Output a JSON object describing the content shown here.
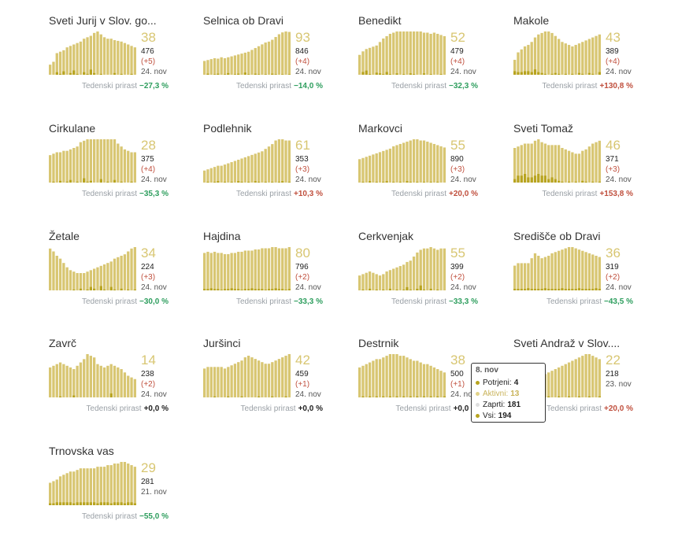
{
  "trend_label": "Tedenski prirast",
  "colors": {
    "bar": "#d8c672",
    "bar_dark": "#b8a420",
    "green": "#2e9e5e",
    "red": "#c0503e"
  },
  "tooltip": {
    "date": "8. nov",
    "rows": [
      {
        "label": "Potrjeni:",
        "value": "4",
        "color": "#b8a420"
      },
      {
        "label": "Aktivni:",
        "value": "13",
        "color": "#e2d389"
      },
      {
        "label": "Zaprti:",
        "value": "181",
        "color": "#dedede"
      },
      {
        "label": "Vsi:",
        "value": "194",
        "color": "#b8a420"
      }
    ]
  },
  "chart_data": [
    {
      "type": "bar",
      "name": "Sveti Jurij v Slov. go...",
      "active": "38",
      "total": "476",
      "delta": "(+5)",
      "date": "24. nov",
      "weekly": "−27,3 %",
      "trend": "down",
      "values": [
        14,
        18,
        30,
        32,
        34,
        38,
        40,
        42,
        44,
        46,
        50,
        52,
        54,
        58,
        60,
        56,
        52,
        50,
        50,
        48,
        47,
        46,
        44,
        42,
        40,
        38
      ],
      "confirmed": [
        0,
        0,
        3,
        1,
        4,
        0,
        2,
        5,
        1,
        0,
        3,
        1,
        6,
        2,
        0,
        1,
        0,
        0,
        0,
        2,
        0,
        1,
        0,
        0,
        1,
        0
      ]
    },
    {
      "type": "bar",
      "name": "Selnica ob Dravi",
      "active": "93",
      "total": "846",
      "delta": "(+4)",
      "date": "24. nov",
      "weekly": "−14,0 %",
      "trend": "down",
      "values": [
        30,
        32,
        34,
        36,
        35,
        38,
        36,
        38,
        40,
        42,
        44,
        46,
        48,
        50,
        54,
        58,
        62,
        66,
        70,
        72,
        76,
        82,
        88,
        92,
        94,
        93
      ],
      "confirmed": [
        0,
        2,
        0,
        1,
        2,
        0,
        1,
        3,
        0,
        1,
        2,
        0,
        4,
        1,
        0,
        2,
        1,
        0,
        1,
        0,
        2,
        1,
        0,
        1,
        0,
        1
      ]
    },
    {
      "type": "bar",
      "name": "Benedikt",
      "active": "52",
      "total": "479",
      "delta": "(+4)",
      "date": "24. nov",
      "weekly": "−32,3 %",
      "trend": "down",
      "values": [
        34,
        40,
        44,
        46,
        48,
        50,
        56,
        62,
        66,
        70,
        72,
        74,
        74,
        74,
        74,
        74,
        74,
        74,
        74,
        72,
        72,
        70,
        72,
        70,
        68,
        66
      ],
      "confirmed": [
        0,
        4,
        6,
        1,
        0,
        3,
        2,
        1,
        4,
        1,
        0,
        2,
        0,
        1,
        0,
        2,
        1,
        0,
        0,
        2,
        0,
        1,
        0,
        0,
        1,
        0
      ]
    },
    {
      "type": "bar",
      "name": "Makole",
      "active": "43",
      "total": "389",
      "delta": "(+4)",
      "date": "24. nov",
      "weekly": "+130,8 %",
      "trend": "up",
      "values": [
        20,
        30,
        34,
        38,
        40,
        44,
        50,
        54,
        56,
        58,
        58,
        56,
        52,
        48,
        44,
        42,
        40,
        38,
        40,
        42,
        44,
        46,
        48,
        50,
        52,
        54
      ],
      "confirmed": [
        4,
        3,
        3,
        4,
        4,
        3,
        6,
        3,
        2,
        1,
        0,
        1,
        2,
        1,
        0,
        1,
        0,
        1,
        0,
        2,
        1,
        0,
        2,
        1,
        0,
        3
      ]
    },
    {
      "type": "bar",
      "name": "Cirkulane",
      "active": "28",
      "total": "375",
      "delta": "(+4)",
      "date": "24. nov",
      "weekly": "−35,3 %",
      "trend": "down",
      "values": [
        38,
        40,
        42,
        42,
        44,
        44,
        46,
        48,
        50,
        56,
        58,
        60,
        60,
        60,
        60,
        60,
        60,
        60,
        60,
        60,
        54,
        50,
        46,
        44,
        42,
        42
      ],
      "confirmed": [
        0,
        1,
        0,
        2,
        0,
        1,
        3,
        0,
        1,
        0,
        5,
        1,
        2,
        0,
        0,
        4,
        0,
        1,
        0,
        3,
        0,
        1,
        0,
        0,
        1,
        0
      ]
    },
    {
      "type": "bar",
      "name": "Podlehnik",
      "active": "61",
      "total": "353",
      "delta": "(+3)",
      "date": "24. nov",
      "weekly": "+10,3 %",
      "trend": "up",
      "values": [
        20,
        22,
        24,
        26,
        28,
        28,
        30,
        32,
        34,
        36,
        38,
        40,
        42,
        44,
        46,
        48,
        50,
        52,
        56,
        60,
        64,
        70,
        72,
        72,
        70,
        70
      ],
      "confirmed": [
        0,
        1,
        0,
        1,
        2,
        0,
        1,
        0,
        1,
        0,
        2,
        1,
        0,
        1,
        0,
        2,
        1,
        0,
        1,
        0,
        1,
        0,
        1,
        2,
        0,
        1
      ]
    },
    {
      "type": "bar",
      "name": "Markovci",
      "active": "55",
      "total": "890",
      "delta": "(+3)",
      "date": "24. nov",
      "weekly": "+20,0 %",
      "trend": "up",
      "values": [
        40,
        42,
        44,
        46,
        48,
        50,
        52,
        54,
        56,
        58,
        62,
        64,
        66,
        68,
        70,
        72,
        74,
        74,
        72,
        72,
        70,
        68,
        66,
        64,
        62,
        60
      ],
      "confirmed": [
        0,
        1,
        0,
        2,
        0,
        1,
        0,
        1,
        2,
        0,
        1,
        0,
        1,
        0,
        2,
        1,
        0,
        1,
        0,
        1,
        0,
        1,
        0,
        1,
        0,
        0
      ]
    },
    {
      "type": "bar",
      "name": "Sveti Tomaž",
      "active": "46",
      "total": "371",
      "delta": "(+3)",
      "date": "24. nov",
      "weekly": "+153,8 %",
      "trend": "up",
      "values": [
        48,
        50,
        52,
        54,
        54,
        54,
        58,
        60,
        56,
        54,
        52,
        52,
        52,
        52,
        48,
        46,
        44,
        42,
        40,
        40,
        44,
        46,
        50,
        54,
        56,
        58
      ],
      "confirmed": [
        4,
        8,
        8,
        10,
        6,
        6,
        8,
        10,
        8,
        8,
        4,
        6,
        4,
        2,
        1,
        0,
        1,
        0,
        1,
        0,
        2,
        1,
        0,
        1,
        0,
        1
      ]
    },
    {
      "type": "bar",
      "name": "Žetale",
      "active": "34",
      "total": "224",
      "delta": "(+3)",
      "date": "24. nov",
      "weekly": "−30,0 %",
      "trend": "down",
      "values": [
        58,
        54,
        48,
        44,
        38,
        32,
        28,
        26,
        24,
        24,
        24,
        26,
        28,
        30,
        32,
        34,
        36,
        38,
        40,
        44,
        46,
        48,
        50,
        54,
        58,
        60
      ],
      "confirmed": [
        0,
        0,
        0,
        0,
        0,
        0,
        0,
        1,
        0,
        2,
        0,
        1,
        4,
        2,
        0,
        5,
        1,
        0,
        4,
        1,
        0,
        2,
        0,
        1,
        0,
        1
      ]
    },
    {
      "type": "bar",
      "name": "Hajdina",
      "active": "80",
      "total": "796",
      "delta": "(+2)",
      "date": "24. nov",
      "weekly": "−33,3 %",
      "trend": "down",
      "values": [
        64,
        66,
        64,
        66,
        64,
        64,
        62,
        62,
        64,
        64,
        66,
        66,
        68,
        68,
        68,
        70,
        70,
        72,
        72,
        72,
        74,
        74,
        72,
        72,
        72,
        74
      ],
      "confirmed": [
        2,
        2,
        3,
        2,
        2,
        1,
        2,
        2,
        3,
        2,
        2,
        1,
        2,
        2,
        3,
        2,
        2,
        2,
        1,
        2,
        2,
        3,
        2,
        2,
        1,
        2
      ]
    },
    {
      "type": "bar",
      "name": "Cerkvenjak",
      "active": "55",
      "total": "399",
      "delta": "(+2)",
      "date": "24. nov",
      "weekly": "−33,3 %",
      "trend": "down",
      "values": [
        22,
        24,
        26,
        28,
        26,
        24,
        22,
        24,
        28,
        30,
        32,
        34,
        36,
        38,
        42,
        44,
        50,
        56,
        60,
        62,
        62,
        64,
        62,
        60,
        62,
        62
      ],
      "confirmed": [
        0,
        1,
        0,
        2,
        0,
        1,
        0,
        1,
        0,
        2,
        0,
        1,
        0,
        1,
        4,
        1,
        0,
        2,
        6,
        1,
        0,
        2,
        0,
        1,
        0,
        0
      ]
    },
    {
      "type": "bar",
      "name": "Središče ob Dravi",
      "active": "36",
      "total": "319",
      "delta": "(+2)",
      "date": "24. nov",
      "weekly": "−43,5 %",
      "trend": "down",
      "values": [
        40,
        44,
        44,
        44,
        44,
        52,
        60,
        56,
        52,
        54,
        56,
        60,
        62,
        64,
        66,
        68,
        70,
        70,
        68,
        66,
        64,
        62,
        60,
        58,
        56,
        54
      ],
      "confirmed": [
        2,
        2,
        2,
        2,
        3,
        2,
        2,
        2,
        2,
        3,
        2,
        2,
        2,
        2,
        3,
        2,
        2,
        2,
        2,
        3,
        2,
        2,
        2,
        2,
        3,
        2
      ]
    },
    {
      "type": "bar",
      "name": "Zavrč",
      "active": "14",
      "total": "238",
      "delta": "(+2)",
      "date": "24. nov",
      "weekly": "+0,0 %",
      "trend": "flat",
      "values": [
        36,
        38,
        40,
        42,
        40,
        38,
        36,
        34,
        38,
        42,
        46,
        52,
        50,
        48,
        40,
        38,
        36,
        38,
        40,
        38,
        36,
        34,
        30,
        26,
        24,
        22
      ],
      "confirmed": [
        0,
        0,
        0,
        1,
        0,
        0,
        0,
        2,
        0,
        0,
        0,
        0,
        0,
        0,
        0,
        0,
        0,
        0,
        4,
        0,
        0,
        0,
        0,
        0,
        0,
        0
      ]
    },
    {
      "type": "bar",
      "name": "Juršinci",
      "active": "42",
      "total": "459",
      "delta": "(+1)",
      "date": "24. nov",
      "weekly": "+0,0 %",
      "trend": "flat",
      "values": [
        36,
        38,
        38,
        38,
        38,
        38,
        36,
        38,
        40,
        42,
        44,
        46,
        50,
        52,
        50,
        48,
        46,
        44,
        42,
        42,
        44,
        46,
        48,
        50,
        52,
        54
      ],
      "confirmed": [
        0,
        0,
        0,
        1,
        0,
        0,
        0,
        1,
        0,
        0,
        0,
        1,
        0,
        0,
        0,
        0,
        1,
        0,
        0,
        0,
        1,
        0,
        0,
        0,
        1,
        0
      ]
    },
    {
      "type": "bar",
      "name": "Destrnik",
      "active": "38",
      "total": "500",
      "delta": "(+1)",
      "date": "24. nov",
      "weekly": "+0,0 %",
      "trend": "flat",
      "values": [
        36,
        38,
        40,
        42,
        44,
        46,
        46,
        48,
        50,
        52,
        52,
        52,
        50,
        50,
        48,
        46,
        44,
        44,
        42,
        40,
        40,
        38,
        36,
        34,
        32,
        30
      ],
      "confirmed": [
        0,
        1,
        0,
        1,
        0,
        1,
        0,
        1,
        0,
        1,
        0,
        1,
        0,
        1,
        0,
        1,
        0,
        1,
        0,
        1,
        0,
        1,
        0,
        1,
        0,
        1
      ]
    },
    {
      "type": "bar",
      "name": "Sveti Andraž v Slov....",
      "active": "22",
      "total": "218",
      "delta": "",
      "date": "23. nov",
      "weekly": "+20,0 %",
      "trend": "up",
      "values": [
        10,
        12,
        14,
        16,
        18,
        20,
        22,
        24,
        26,
        28,
        30,
        32,
        34,
        36,
        38,
        40,
        42,
        44,
        46,
        48,
        50,
        52,
        52,
        50,
        48,
        46
      ],
      "confirmed": [
        0,
        0,
        0,
        0,
        1,
        0,
        0,
        1,
        0,
        0,
        1,
        0,
        0,
        1,
        0,
        0,
        1,
        0,
        0,
        1,
        0,
        0,
        1,
        0,
        0,
        1
      ]
    },
    {
      "type": "bar",
      "name": "Trnovska vas",
      "active": "29",
      "total": "281",
      "delta": "",
      "date": "21. nov",
      "weekly": "−55,0 %",
      "trend": "down",
      "values": [
        28,
        30,
        32,
        36,
        38,
        40,
        42,
        42,
        44,
        46,
        46,
        46,
        46,
        46,
        48,
        48,
        48,
        50,
        50,
        52,
        52,
        54,
        54,
        52,
        50,
        48
      ],
      "confirmed": [
        2,
        2,
        3,
        3,
        3,
        3,
        3,
        2,
        3,
        3,
        3,
        3,
        3,
        3,
        2,
        3,
        3,
        3,
        2,
        3,
        3,
        3,
        2,
        3,
        3,
        2
      ]
    }
  ]
}
